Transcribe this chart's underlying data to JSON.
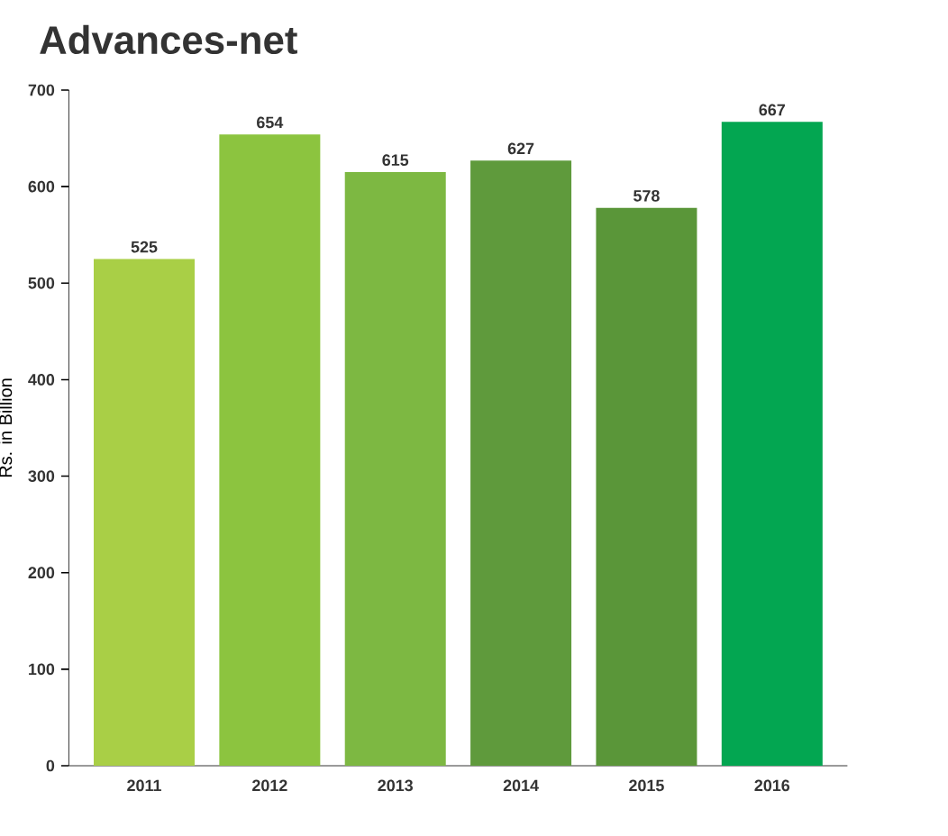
{
  "chart_data": {
    "type": "bar",
    "title": "Advances-net",
    "ylabel": "Rs. in Billion",
    "categories": [
      "2011",
      "2012",
      "2013",
      "2014",
      "2015",
      "2016"
    ],
    "values": [
      525,
      654,
      615,
      627,
      578,
      667
    ],
    "colors": [
      "#a9cf46",
      "#8cc43f",
      "#7db842",
      "#5f9a3c",
      "#5a9639",
      "#03a651"
    ],
    "ylim": [
      0,
      700
    ],
    "yticks": [
      0,
      100,
      200,
      300,
      400,
      500,
      600,
      700
    ],
    "data_labels": true,
    "grid": false
  }
}
